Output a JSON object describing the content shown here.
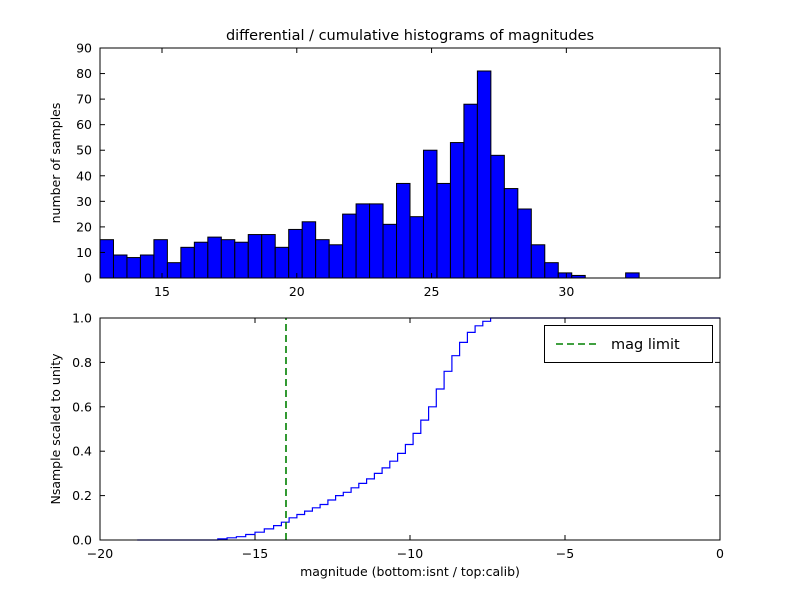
{
  "figure": {
    "background": "#ffffff"
  },
  "chart_data": [
    {
      "type": "bar",
      "subtype": "histogram",
      "title": "differential / cumulative histograms of magnitudes",
      "ylabel": "number of samples",
      "xlabel": "",
      "bin_start": 12.7,
      "bin_width": 0.5,
      "heights": [
        15,
        9,
        8,
        9,
        15,
        6,
        12,
        14,
        16,
        15,
        14,
        17,
        17,
        12,
        19,
        22,
        15,
        13,
        25,
        29,
        29,
        21,
        37,
        24,
        50,
        37,
        53,
        68,
        81,
        48,
        35,
        27,
        13,
        6,
        2,
        1,
        0,
        0,
        0,
        2
      ],
      "xlim": [
        12.7,
        35.7
      ],
      "ylim": [
        0,
        90
      ],
      "xticks": [
        15,
        20,
        25,
        30
      ],
      "xtick_labels": [
        "15",
        "20",
        "25",
        "30"
      ],
      "yticks": [
        0,
        10,
        20,
        30,
        40,
        50,
        60,
        70,
        80,
        90
      ],
      "ytick_labels": [
        "0",
        "10",
        "20",
        "30",
        "40",
        "50",
        "60",
        "70",
        "80",
        "90"
      ],
      "bar_color": "#0000ff",
      "bar_edge_color": "#000000",
      "grid": false
    },
    {
      "type": "line",
      "subtype": "cumulative-step",
      "ylabel": "Nsample scaled to unity",
      "xlabel": "magnitude (bottom:isnt / top:calib)",
      "x": [
        -18.8,
        -16.2,
        -15.9,
        -15.6,
        -15.3,
        -15.0,
        -14.7,
        -14.4,
        -14.15,
        -13.9,
        -13.65,
        -13.4,
        -13.15,
        -12.9,
        -12.65,
        -12.4,
        -12.15,
        -11.9,
        -11.65,
        -11.4,
        -11.15,
        -10.9,
        -10.65,
        -10.4,
        -10.15,
        -9.9,
        -9.65,
        -9.4,
        -9.15,
        -8.9,
        -8.65,
        -8.4,
        -8.15,
        -7.9,
        -7.65,
        -7.4
      ],
      "y": [
        0.0,
        0.005,
        0.01,
        0.015,
        0.025,
        0.035,
        0.05,
        0.065,
        0.08,
        0.1,
        0.115,
        0.13,
        0.145,
        0.16,
        0.18,
        0.2,
        0.215,
        0.235,
        0.255,
        0.275,
        0.3,
        0.325,
        0.355,
        0.39,
        0.43,
        0.48,
        0.54,
        0.6,
        0.68,
        0.76,
        0.83,
        0.89,
        0.935,
        0.965,
        0.985,
        1.0
      ],
      "xlim": [
        -20,
        0
      ],
      "ylim": [
        0.0,
        1.0
      ],
      "xticks": [
        -20,
        -15,
        -10,
        -5,
        0
      ],
      "xtick_labels": [
        "−20",
        "−15",
        "−10",
        "−5",
        "0"
      ],
      "yticks": [
        0.0,
        0.2,
        0.4,
        0.6,
        0.8,
        1.0
      ],
      "ytick_labels": [
        "0.0",
        "0.2",
        "0.4",
        "0.6",
        "0.8",
        "1.0"
      ],
      "line_color": "#0000ff",
      "mag_limit": -14,
      "mag_limit_color": "#008000",
      "legend": {
        "label": "mag limit",
        "position": "upper right"
      },
      "grid": false
    }
  ]
}
